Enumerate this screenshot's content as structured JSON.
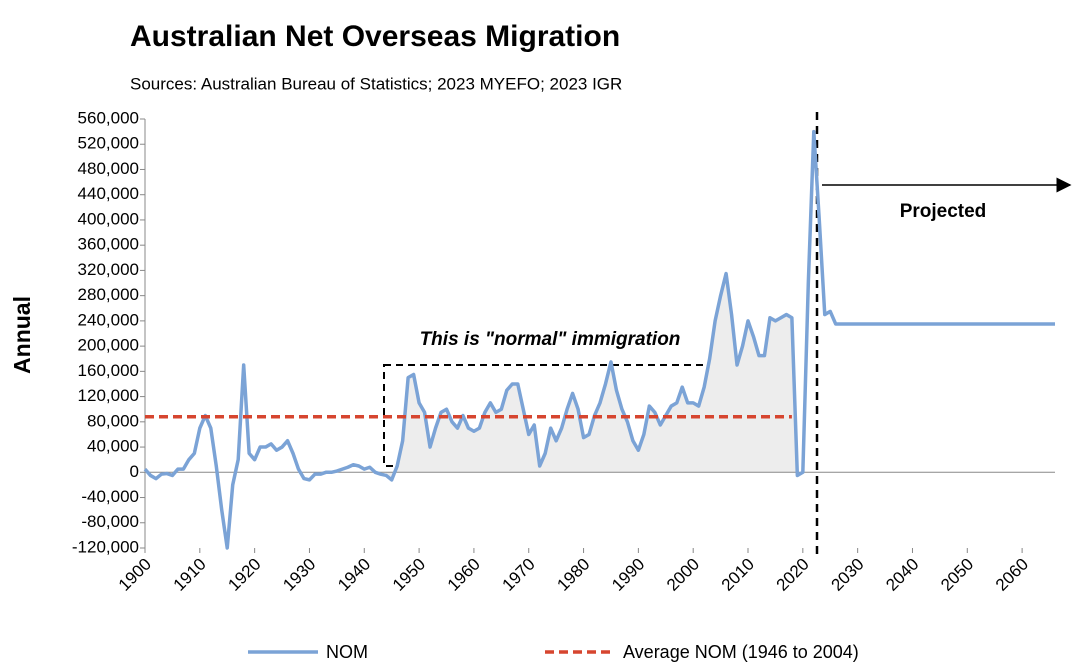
{
  "chart_data": {
    "type": "line",
    "title": "Australian Net Overseas Migration",
    "subtitle": "Sources: Australian Bureau of Statistics; 2023 MYEFO; 2023 IGR",
    "y_label": "Annual",
    "annotations": [
      "This is \"normal\" immigration",
      "Projected"
    ],
    "x": [
      1900,
      1901,
      1902,
      1903,
      1904,
      1905,
      1906,
      1907,
      1908,
      1909,
      1910,
      1911,
      1912,
      1913,
      1914,
      1915,
      1916,
      1917,
      1918,
      1919,
      1920,
      1921,
      1922,
      1923,
      1924,
      1925,
      1926,
      1927,
      1928,
      1929,
      1930,
      1931,
      1932,
      1933,
      1934,
      1935,
      1936,
      1937,
      1938,
      1939,
      1940,
      1941,
      1942,
      1943,
      1944,
      1945,
      1946,
      1947,
      1948,
      1949,
      1950,
      1951,
      1952,
      1953,
      1954,
      1955,
      1956,
      1957,
      1958,
      1959,
      1960,
      1961,
      1962,
      1963,
      1964,
      1965,
      1966,
      1967,
      1968,
      1969,
      1970,
      1971,
      1972,
      1973,
      1974,
      1975,
      1976,
      1977,
      1978,
      1979,
      1980,
      1981,
      1982,
      1983,
      1984,
      1985,
      1986,
      1987,
      1988,
      1989,
      1990,
      1991,
      1992,
      1993,
      1994,
      1995,
      1996,
      1997,
      1998,
      1999,
      2000,
      2001,
      2002,
      2003,
      2004,
      2005,
      2006,
      2007,
      2008,
      2009,
      2010,
      2011,
      2012,
      2013,
      2014,
      2015,
      2016,
      2017,
      2018,
      2019,
      2020,
      2021,
      2022,
      2023,
      2024,
      2025,
      2026,
      2027,
      2028,
      2029,
      2030,
      2031,
      2032,
      2033,
      2034,
      2035,
      2036,
      2037,
      2038,
      2039,
      2040,
      2041,
      2042,
      2043,
      2044,
      2045,
      2046,
      2047,
      2048,
      2049,
      2050,
      2051,
      2052,
      2053,
      2054,
      2055,
      2056,
      2057,
      2058,
      2059,
      2060,
      2061,
      2062,
      2063,
      2064,
      2065,
      2066
    ],
    "series": [
      {
        "name": "NOM",
        "color": "#7ba3d6",
        "values": [
          5000,
          -5000,
          -10000,
          -3000,
          -2000,
          -5000,
          5000,
          5000,
          20000,
          30000,
          70000,
          90000,
          70000,
          10000,
          -60000,
          -120000,
          -20000,
          20000,
          170000,
          30000,
          20000,
          40000,
          40000,
          45000,
          35000,
          40000,
          50000,
          30000,
          5000,
          -10000,
          -12000,
          -3000,
          -3000,
          0,
          0,
          2000,
          5000,
          8000,
          12000,
          10000,
          5000,
          8000,
          0,
          -3000,
          -5000,
          -12000,
          10000,
          50000,
          150000,
          155000,
          110000,
          95000,
          40000,
          70000,
          95000,
          100000,
          80000,
          70000,
          90000,
          70000,
          65000,
          70000,
          95000,
          110000,
          95000,
          100000,
          130000,
          140000,
          140000,
          100000,
          60000,
          75000,
          10000,
          30000,
          70000,
          50000,
          70000,
          100000,
          125000,
          100000,
          55000,
          60000,
          90000,
          110000,
          140000,
          175000,
          130000,
          100000,
          80000,
          50000,
          35000,
          60000,
          105000,
          95000,
          75000,
          90000,
          105000,
          110000,
          135000,
          110000,
          110000,
          105000,
          135000,
          180000,
          240000,
          280000,
          315000,
          250000,
          170000,
          200000,
          240000,
          215000,
          185000,
          185000,
          245000,
          240000,
          245000,
          250000,
          245000,
          -5000,
          0,
          300000,
          540000,
          400000,
          250000,
          255000,
          235000,
          235000,
          235000,
          235000,
          235000,
          235000,
          235000,
          235000,
          235000,
          235000,
          235000,
          235000,
          235000,
          235000,
          235000,
          235000,
          235000,
          235000,
          235000,
          235000,
          235000,
          235000,
          235000,
          235000,
          235000,
          235000,
          235000,
          235000,
          235000,
          235000,
          235000,
          235000,
          235000,
          235000,
          235000,
          235000,
          235000,
          235000,
          235000,
          235000,
          235000
        ]
      },
      {
        "name": "Average NOM (1946 to 2004)",
        "color": "#d6452f",
        "dashed": true,
        "x": [
          1900,
          2018
        ],
        "values": [
          88000,
          88000
        ]
      }
    ],
    "xlim": [
      1900,
      2066
    ],
    "ylim": [
      -120000,
      560000
    ],
    "xticks": [
      1900,
      1910,
      1920,
      1930,
      1940,
      1950,
      1960,
      1970,
      1980,
      1990,
      2000,
      2010,
      2020,
      2030,
      2040,
      2050,
      2060
    ],
    "yticks": [
      {
        "value": -120000,
        "label": "-120,000"
      },
      {
        "value": -80000,
        "label": "-80,000"
      },
      {
        "value": -40000,
        "label": "-40,000"
      },
      0,
      {
        "value": 40000,
        "label": "40,000"
      },
      {
        "value": 80000,
        "label": "80,000"
      },
      {
        "value": 120000,
        "label": "120,000"
      },
      {
        "value": 160000,
        "label": "160,000"
      },
      {
        "value": 200000,
        "label": "200,000"
      },
      {
        "value": 240000,
        "label": "240,000"
      },
      {
        "value": 280000,
        "label": "280,000"
      },
      {
        "value": 320000,
        "label": "320,000"
      },
      {
        "value": 360000,
        "label": "360,000"
      },
      {
        "value": 400000,
        "label": "400,000"
      },
      {
        "value": 440000,
        "label": "440,000"
      },
      {
        "value": 480000,
        "label": "480,000"
      },
      {
        "value": 520000,
        "label": "520,000"
      },
      {
        "value": 560000,
        "label": "560,000"
      }
    ]
  }
}
